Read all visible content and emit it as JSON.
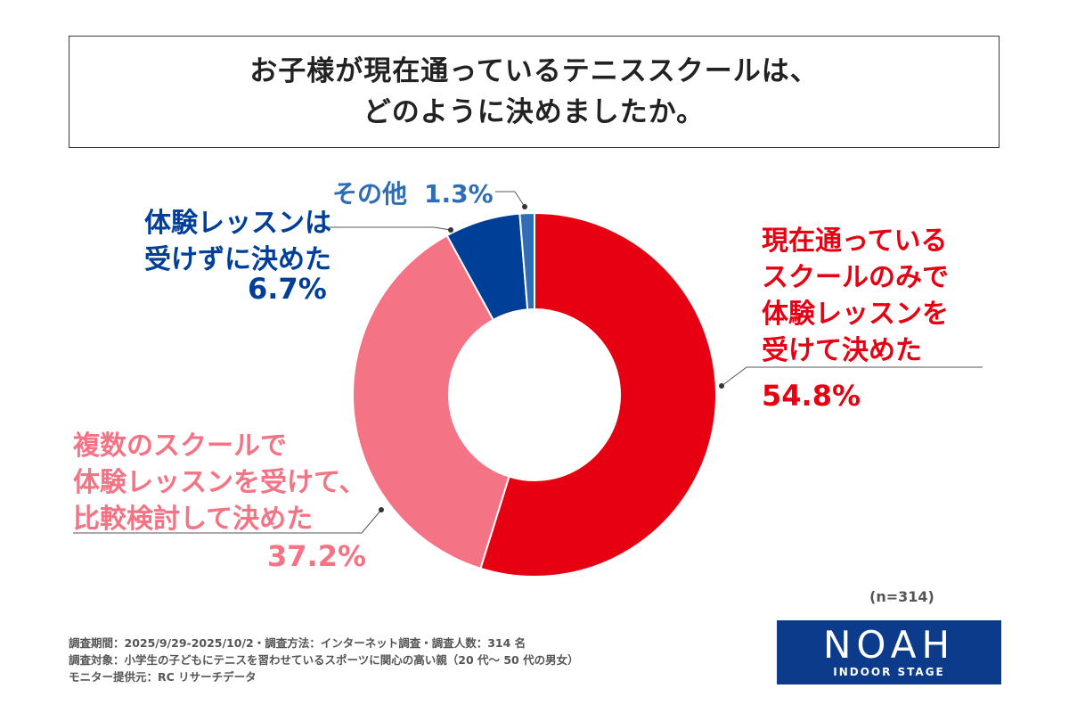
{
  "title": {
    "line1": "お子様が現在通っているテニススクールは、",
    "line2": "どのように決めましたか。"
  },
  "chart_data": {
    "type": "pie",
    "variant": "donut",
    "title": "お子様が現在通っているテニススクールは、どのように決めましたか。",
    "slices": [
      {
        "label": "現在通っているスクールのみで体験レッスンを受けて決めた",
        "value": 54.8,
        "value_label": "54.8%",
        "color": "#e60012",
        "label_lines": [
          "現在通っている",
          "スクールのみで",
          "体験レッスンを",
          "受けて決めた"
        ]
      },
      {
        "label": "複数のスクールで体験レッスンを受けて、比較検討して決めた",
        "value": 37.2,
        "value_label": "37.2%",
        "color": "#f47384",
        "label_lines": [
          "複数のスクールで",
          "体験レッスンを受けて、",
          "比較検討して決めた"
        ]
      },
      {
        "label": "体験レッスンは受けずに決めた",
        "value": 6.7,
        "value_label": "6.7%",
        "color": "#003f98",
        "label_lines": [
          "体験レッスンは",
          "受けずに決めた"
        ]
      },
      {
        "label": "その他",
        "value": 1.3,
        "value_label": "1.3%",
        "color": "#2f6eb5",
        "label_lines": [
          "その他"
        ]
      }
    ],
    "n_label": "(n=314)"
  },
  "footer": {
    "line1": "調査期間：2025/9/29-2025/10/2・調査方法：インターネット調査・調査人数：314 名",
    "line2": "調査対象：小学生の子どもにテニスを習わせているスポーツに関心の高い親（20 代〜 50 代の男女）",
    "line3": "モニター提供元：RC リサーチデータ"
  },
  "logo": {
    "main": "NOAH",
    "sub": "INDOOR STAGE"
  }
}
